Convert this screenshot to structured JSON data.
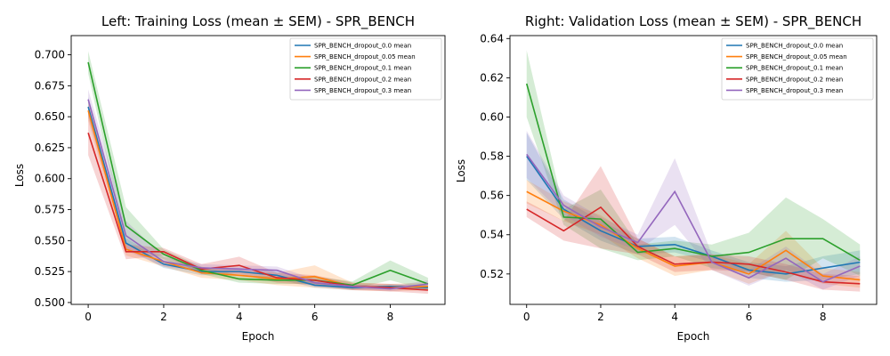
{
  "chart_data": [
    {
      "type": "line",
      "title": "Left: Training Loss (mean ± SEM) - SPR_BENCH",
      "xlabel": "Epoch",
      "ylabel": "Loss",
      "xlim": [
        -0.45,
        9.45
      ],
      "ylim": [
        0.4985,
        0.7155
      ],
      "xticks": [
        0,
        2,
        4,
        6,
        8
      ],
      "yticks": [
        0.5,
        0.525,
        0.55,
        0.575,
        0.6,
        0.625,
        0.65,
        0.675,
        0.7
      ],
      "legend_position": "top-right",
      "x": [
        0,
        1,
        2,
        3,
        4,
        5,
        6,
        7,
        8,
        9
      ],
      "series": [
        {
          "name": "SPR_BENCH_dropout_0.0 mean",
          "color": "#1f77b4",
          "values": [
            0.658,
            0.548,
            0.531,
            0.525,
            0.525,
            0.522,
            0.514,
            0.512,
            0.513,
            0.512
          ],
          "sem": [
            0.008,
            0.004,
            0.003,
            0.003,
            0.003,
            0.003,
            0.002,
            0.002,
            0.002,
            0.002
          ]
        },
        {
          "name": "SPR_BENCH_dropout_0.05 mean",
          "color": "#ff7f0e",
          "values": [
            0.655,
            0.543,
            0.533,
            0.524,
            0.522,
            0.519,
            0.521,
            0.513,
            0.512,
            0.513
          ],
          "sem": [
            0.008,
            0.005,
            0.004,
            0.004,
            0.004,
            0.005,
            0.009,
            0.003,
            0.003,
            0.003
          ]
        },
        {
          "name": "SPR_BENCH_dropout_0.1 mean",
          "color": "#2ca02c",
          "values": [
            0.694,
            0.562,
            0.539,
            0.526,
            0.519,
            0.518,
            0.518,
            0.514,
            0.526,
            0.515
          ],
          "sem": [
            0.009,
            0.015,
            0.004,
            0.003,
            0.003,
            0.003,
            0.003,
            0.003,
            0.008,
            0.005
          ]
        },
        {
          "name": "SPR_BENCH_dropout_0.2 mean",
          "color": "#d62728",
          "values": [
            0.637,
            0.541,
            0.541,
            0.527,
            0.53,
            0.52,
            0.518,
            0.513,
            0.512,
            0.51
          ],
          "sem": [
            0.018,
            0.006,
            0.003,
            0.004,
            0.007,
            0.004,
            0.004,
            0.003,
            0.003,
            0.003
          ]
        },
        {
          "name": "SPR_BENCH_dropout_0.3 mean",
          "color": "#9467bd",
          "values": [
            0.664,
            0.554,
            0.533,
            0.528,
            0.527,
            0.526,
            0.516,
            0.513,
            0.511,
            0.515
          ],
          "sem": [
            0.008,
            0.012,
            0.004,
            0.003,
            0.003,
            0.003,
            0.003,
            0.002,
            0.002,
            0.003
          ]
        }
      ]
    },
    {
      "type": "line",
      "title": "Right: Validation Loss (mean ± SEM) - SPR_BENCH",
      "xlabel": "Epoch",
      "ylabel": "Loss",
      "xlim": [
        -0.45,
        9.45
      ],
      "ylim": [
        0.5045,
        0.6415
      ],
      "xticks": [
        0,
        2,
        4,
        6,
        8
      ],
      "yticks": [
        0.52,
        0.54,
        0.56,
        0.58,
        0.6,
        0.62,
        0.64
      ],
      "legend_position": "top-right",
      "x": [
        0,
        1,
        2,
        3,
        4,
        5,
        6,
        7,
        8,
        9
      ],
      "series": [
        {
          "name": "SPR_BENCH_dropout_0.0 mean",
          "color": "#1f77b4",
          "values": [
            0.58,
            0.553,
            0.542,
            0.534,
            0.535,
            0.529,
            0.522,
            0.52,
            0.523,
            0.526
          ],
          "sem": [
            0.012,
            0.005,
            0.005,
            0.004,
            0.004,
            0.003,
            0.004,
            0.004,
            0.006,
            0.006
          ]
        },
        {
          "name": "SPR_BENCH_dropout_0.05 mean",
          "color": "#ff7f0e",
          "values": [
            0.562,
            0.552,
            0.545,
            0.533,
            0.524,
            0.526,
            0.52,
            0.532,
            0.519,
            0.517
          ],
          "sem": [
            0.006,
            0.005,
            0.005,
            0.005,
            0.005,
            0.004,
            0.005,
            0.01,
            0.004,
            0.004
          ]
        },
        {
          "name": "SPR_BENCH_dropout_0.1 mean",
          "color": "#2ca02c",
          "values": [
            0.617,
            0.549,
            0.548,
            0.531,
            0.533,
            0.529,
            0.531,
            0.538,
            0.538,
            0.527
          ],
          "sem": [
            0.017,
            0.004,
            0.015,
            0.004,
            0.004,
            0.006,
            0.01,
            0.021,
            0.01,
            0.008
          ]
        },
        {
          "name": "SPR_BENCH_dropout_0.2 mean",
          "color": "#d62728",
          "values": [
            0.553,
            0.542,
            0.554,
            0.534,
            0.525,
            0.526,
            0.525,
            0.521,
            0.516,
            0.515
          ],
          "sem": [
            0.004,
            0.005,
            0.021,
            0.004,
            0.004,
            0.004,
            0.004,
            0.004,
            0.004,
            0.004
          ]
        },
        {
          "name": "SPR_BENCH_dropout_0.3 mean",
          "color": "#9467bd",
          "values": [
            0.581,
            0.555,
            0.544,
            0.536,
            0.562,
            0.526,
            0.518,
            0.528,
            0.516,
            0.524
          ],
          "sem": [
            0.012,
            0.005,
            0.005,
            0.004,
            0.017,
            0.004,
            0.004,
            0.006,
            0.004,
            0.005
          ]
        }
      ]
    }
  ]
}
